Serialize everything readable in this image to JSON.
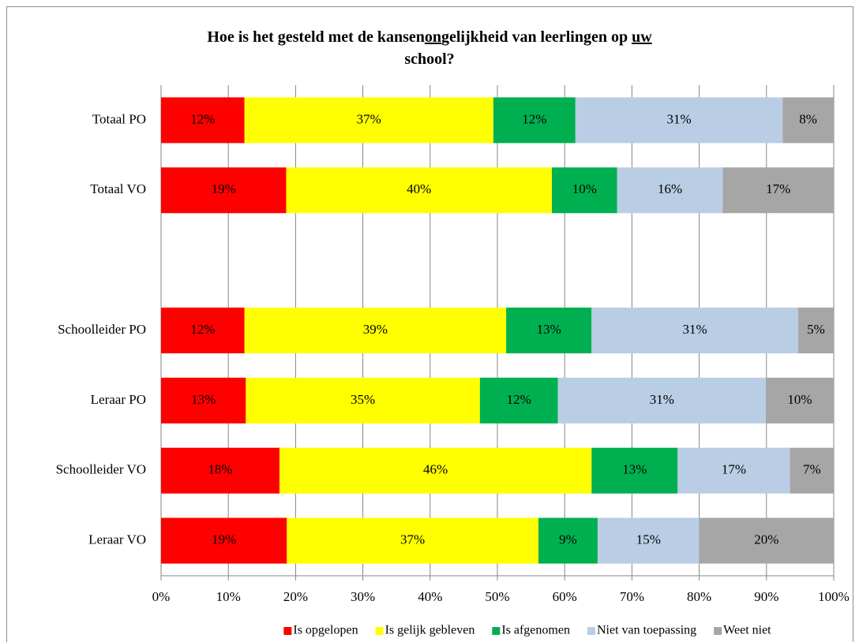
{
  "chart_data": {
    "type": "stacked_bar_horizontal",
    "title_parts": [
      "Hoe is het gesteld met de kansen",
      "on",
      "gelijkheid van leerlingen op",
      "uw",
      "school?"
    ],
    "underlined_parts": [
      1,
      3
    ],
    "categories": [
      "Totaal PO",
      "Totaal VO",
      null,
      "Schoolleider PO",
      "Leraar PO",
      "Schoolleider VO",
      "Leraar VO"
    ],
    "series": [
      {
        "name": "Is opgelopen",
        "color": "#ff0000",
        "label_color": "#333333",
        "values": [
          12.4,
          18.6,
          null,
          12.4,
          12.6,
          17.6,
          18.7
        ],
        "value_labels": [
          "12%",
          "19%",
          null,
          "12%",
          "13%",
          "18%",
          "19%"
        ]
      },
      {
        "name": "Is gelijk gebleven",
        "color": "#ffff00",
        "label_color": "#333333",
        "values": [
          37.0,
          39.5,
          null,
          38.9,
          34.8,
          46.4,
          37.4
        ],
        "value_labels": [
          "37%",
          "40%",
          null,
          "39%",
          "35%",
          "46%",
          "37%"
        ]
      },
      {
        "name": "Is afgenomen",
        "color": "#00b050",
        "label_color": "#ffffff",
        "values": [
          12.2,
          9.7,
          null,
          12.7,
          11.6,
          12.8,
          8.8
        ],
        "value_labels": [
          "12%",
          "10%",
          null,
          "13%",
          "12%",
          "13%",
          "9%"
        ]
      },
      {
        "name": "Niet van toepassing",
        "color": "#b9cde5",
        "label_color": "#333333",
        "values": [
          30.8,
          15.7,
          null,
          30.7,
          30.9,
          16.7,
          15.1
        ],
        "value_labels": [
          "31%",
          "16%",
          null,
          "31%",
          "31%",
          "17%",
          "15%"
        ]
      },
      {
        "name": "Weet niet",
        "color": "#a6a6a6",
        "label_color": "#333333",
        "values": [
          7.6,
          16.5,
          null,
          5.3,
          10.1,
          6.5,
          20.0
        ],
        "value_labels": [
          "8%",
          "17%",
          null,
          "5%",
          "10%",
          "7%",
          "20%"
        ]
      }
    ],
    "xlim": [
      0,
      100
    ],
    "xticks": [
      {
        "value": 0,
        "label": "0%"
      },
      {
        "value": 10,
        "label": "10%"
      },
      {
        "value": 20,
        "label": "20%"
      },
      {
        "value": 30,
        "label": "30%"
      },
      {
        "value": 40,
        "label": "40%"
      },
      {
        "value": 50,
        "label": "50%"
      },
      {
        "value": 60,
        "label": "60%"
      },
      {
        "value": 70,
        "label": "70%"
      },
      {
        "value": 80,
        "label": "80%"
      },
      {
        "value": 90,
        "label": "90%"
      },
      {
        "value": 100,
        "label": "100%"
      }
    ],
    "grid": true,
    "legend": "bottom"
  }
}
